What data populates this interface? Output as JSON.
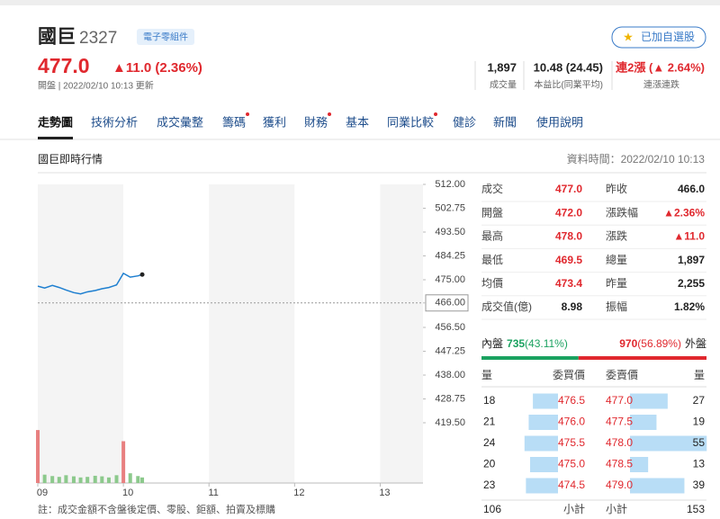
{
  "header": {
    "name": "國巨",
    "code": "2327",
    "sector": "電子零組件",
    "watch_button": "已加自選股",
    "price": "477.0",
    "change": "▲11.0 (2.36%)",
    "update": "開盤 | 2022/02/10 10:13 更新",
    "stats": [
      {
        "value": "1,897",
        "label": "成交量"
      },
      {
        "value": "10.48 (24.45)",
        "label": "本益比(同業平均)"
      },
      {
        "value": "連2漲 (▲ 2.64%)",
        "label": "連漲連跌"
      }
    ]
  },
  "tabs": [
    "走勢圖",
    "技術分析",
    "成交彙整",
    "籌碼",
    "獲利",
    "財務",
    "基本",
    "同業比較",
    "健診",
    "新聞",
    "使用說明"
  ],
  "section": {
    "title": "國巨即時行情",
    "time": "資料時間：2022/02/10 10:13"
  },
  "chart_data": {
    "type": "line",
    "x": [
      9.0,
      9.08,
      9.17,
      9.25,
      9.33,
      9.42,
      9.5,
      9.58,
      9.67,
      9.75,
      9.83,
      9.92,
      10.0,
      10.08,
      10.17,
      10.22
    ],
    "series": [
      {
        "color": "#1e7fd0",
        "values": [
          472.5,
          471.8,
          472.8,
          472.0,
          471.0,
          470.0,
          469.5,
          470.3,
          470.8,
          471.5,
          472.0,
          473.0,
          477.5,
          476.0,
          476.5,
          477.0
        ]
      }
    ],
    "volume": {
      "values": [
        190,
        30,
        25,
        22,
        28,
        24,
        20,
        22,
        26,
        24,
        20,
        28,
        150,
        35,
        25,
        20
      ],
      "colors": [
        "#e88080",
        "#8cc98c",
        "#8cc98c",
        "#8cc98c",
        "#8cc98c",
        "#8cc98c",
        "#8cc98c",
        "#8cc98c",
        "#8cc98c",
        "#8cc98c",
        "#8cc98c",
        "#8cc98c",
        "#e88080",
        "#8cc98c",
        "#8cc98c",
        "#8cc98c"
      ],
      "ylim": [
        0,
        200
      ]
    },
    "prev_close": 466,
    "xlim": [
      9,
      13.5
    ],
    "xticks": [
      {
        "value": 9,
        "label": "09"
      },
      10,
      11,
      12,
      13
    ],
    "ylim": [
      419.5,
      512
    ],
    "yticks": [
      {
        "value": 512,
        "label": "512.00"
      },
      {
        "value": 502.75,
        "label": "502.75"
      },
      {
        "value": 493.5,
        "label": "493.50"
      },
      {
        "value": 484.25,
        "label": "484.25"
      },
      {
        "value": 475,
        "label": "475.00"
      },
      {
        "value": 466,
        "label": "466.00"
      },
      {
        "value": 456.5,
        "label": "456.50"
      },
      {
        "value": 447.25,
        "label": "447.25"
      },
      {
        "value": 438,
        "label": "438.00"
      },
      {
        "value": 428.75,
        "label": "428.75"
      },
      {
        "value": 419.5,
        "label": "419.50"
      }
    ]
  },
  "quote": {
    "rows": [
      [
        "成交",
        "477.0",
        "昨收",
        "466.0"
      ],
      [
        "開盤",
        "472.0",
        "漲跌幅",
        "▲2.36%"
      ],
      [
        "最高",
        "478.0",
        "漲跌",
        "▲11.0"
      ],
      [
        "最低",
        "469.5",
        "總量",
        "1,897"
      ],
      [
        "均價",
        "473.4",
        "昨量",
        "2,255"
      ],
      [
        "成交值(億)",
        "8.98",
        "振幅",
        "1.82%"
      ]
    ],
    "value_colors": [
      [
        "#e0282e",
        "#222222"
      ],
      [
        "#e0282e",
        "#e0282e"
      ],
      [
        "#e0282e",
        "#e0282e"
      ],
      [
        "#e0282e",
        "#222222"
      ],
      [
        "#e0282e",
        "#222222"
      ],
      [
        "#222222",
        "#222222"
      ]
    ]
  },
  "flow": {
    "inner_label": "內盤",
    "inner_volume": "735",
    "inner_pct": 43.11,
    "inner_pct_label": "(43.11%)",
    "outer_volume": "970",
    "outer_pct": 56.89,
    "outer_pct_label": "(56.89%)",
    "outer_label": "外盤"
  },
  "order_book": {
    "headers": [
      "量",
      "委買價",
      "委賣價",
      "量"
    ],
    "rows": [
      {
        "bid_qty": 18,
        "bid": "476.5",
        "ask": "477.0",
        "ask_qty": 27
      },
      {
        "bid_qty": 21,
        "bid": "476.0",
        "ask": "477.5",
        "ask_qty": 19
      },
      {
        "bid_qty": 24,
        "bid": "475.5",
        "ask": "478.0",
        "ask_qty": 55
      },
      {
        "bid_qty": 20,
        "bid": "475.0",
        "ask": "478.5",
        "ask_qty": 13
      },
      {
        "bid_qty": 23,
        "bid": "474.5",
        "ask": "479.0",
        "ask_qty": 39
      }
    ],
    "totals": {
      "bid_qty": 106,
      "bid_label": "小計",
      "ask_label": "小計",
      "ask_qty": 153
    }
  },
  "note": "註：成交金額不含盤後定價、零股、鉅額、拍賣及標購"
}
